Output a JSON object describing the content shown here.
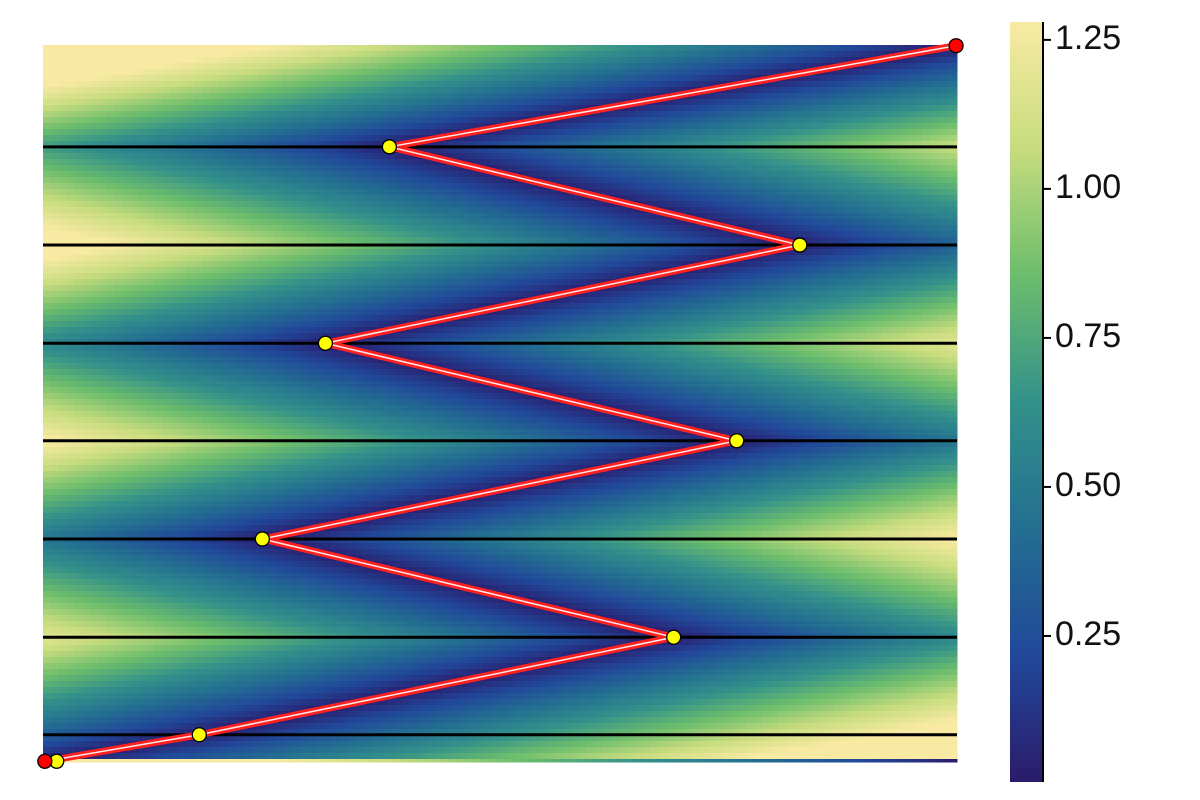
{
  "chart_data": {
    "type": "heatmap",
    "xlim": [
      0,
      1
    ],
    "ylim": [
      0,
      1
    ],
    "lines": [
      0.038,
      0.174,
      0.311,
      0.448,
      0.584,
      0.721,
      0.858
    ],
    "path": {
      "color": "#ff2020",
      "x": [
        0.002,
        0.171,
        0.69,
        0.24,
        0.759,
        0.309,
        0.828,
        0.379,
        0.999
      ],
      "y": [
        0.001,
        0.038,
        0.174,
        0.311,
        0.448,
        0.584,
        0.721,
        0.858,
        0.999
      ]
    },
    "points": {
      "color": "#ffff00",
      "x": [
        0.015,
        0.171,
        0.69,
        0.24,
        0.759,
        0.309,
        0.828,
        0.379
      ],
      "y": [
        0.001,
        0.038,
        0.174,
        0.311,
        0.448,
        0.584,
        0.721,
        0.858
      ]
    },
    "endpoints": {
      "color": "#ff0000",
      "x": [
        0.002,
        0.999
      ],
      "y": [
        0.001,
        0.999
      ]
    },
    "colormap": [
      "#2b1b6b",
      "#21489a",
      "#236f91",
      "#33918a",
      "#6cbd6c",
      "#c7dc7e",
      "#f8eaa2"
    ],
    "clim": [
      0.005,
      1.28
    ],
    "cticks": [
      {
        "value": 0.25,
        "label": "0.25"
      },
      {
        "value": 0.5,
        "label": "0.50"
      },
      {
        "value": 0.75,
        "label": "0.75"
      },
      {
        "value": 1,
        "label": "1.00"
      },
      {
        "value": 1.25,
        "label": "1.25"
      }
    ]
  }
}
